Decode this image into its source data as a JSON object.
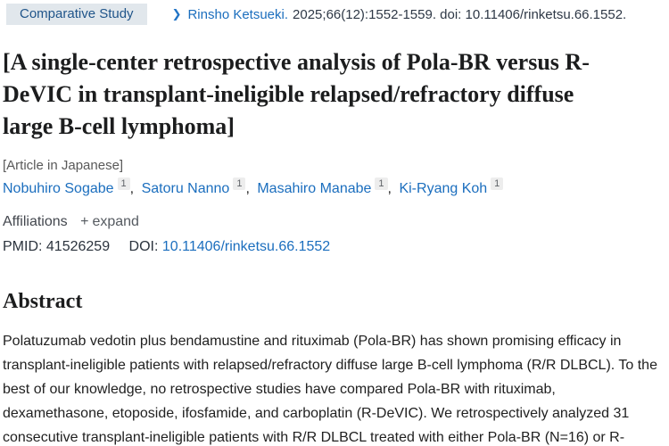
{
  "header": {
    "publication_type": "Comparative Study",
    "chevron_icon": "❯",
    "journal": "Rinsho Ketsueki.",
    "citation_details": "2025;66(12):1552-1559. doi: 10.11406/rinketsu.66.1552."
  },
  "title": "[A single-center retrospective analysis of Pola-BR versus R-DeVIC in transplant-ineligible relapsed/refractory diffuse large B-cell lymphoma]",
  "language_note": "[Article in Japanese]",
  "authors": [
    {
      "name": "Nobuhiro Sogabe",
      "sup": "1"
    },
    {
      "name": "Satoru Nanno",
      "sup": "1"
    },
    {
      "name": "Masahiro Manabe",
      "sup": "1"
    },
    {
      "name": "Ki-Ryang Koh",
      "sup": "1"
    }
  ],
  "author_separator": ",",
  "affiliations": {
    "label": "Affiliations",
    "expand_icon": "+",
    "expand_label": "expand"
  },
  "identifiers": {
    "pmid_label": "PMID:",
    "pmid": "41526259",
    "doi_label": "DOI:",
    "doi_link": "10.11406/rinketsu.66.1552"
  },
  "abstract": {
    "heading": "Abstract",
    "text": "Polatuzumab vedotin plus bendamustine and rituximab (Pola-BR) has shown promising efficacy in transplant-ineligible patients with relapsed/refractory diffuse large B-cell lymphoma (R/R DLBCL). To the best of our knowledge, no retrospective studies have compared Pola-BR with rituximab, dexamethasone, etoposide, ifosfamide, and carboplatin (R-DeVIC). We retrospectively analyzed 31 consecutive transplant-ineligible patients with R/R DLBCL treated with either Pola-BR (N=16) or R-"
  },
  "colors": {
    "link_blue": "#1b6ebe",
    "badge_background": "#e1e7ec",
    "badge_text": "#20558a",
    "body_text": "#212121",
    "muted_gray": "#595959"
  }
}
